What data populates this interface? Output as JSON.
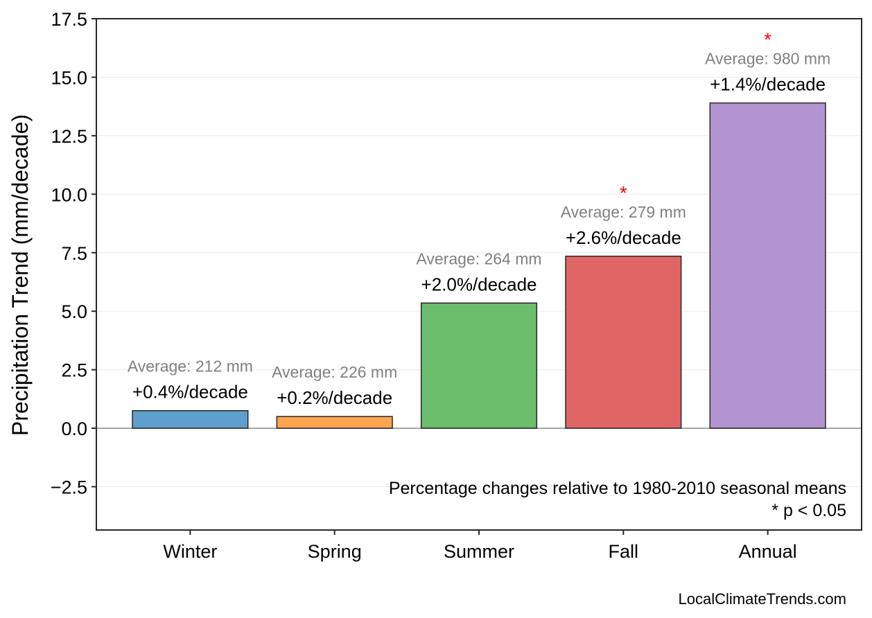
{
  "chart_data": {
    "type": "bar",
    "categories": [
      "Winter",
      "Spring",
      "Summer",
      "Fall",
      "Annual"
    ],
    "values": [
      0.75,
      0.5,
      5.35,
      7.35,
      13.9
    ],
    "averages": [
      "Average: 212 mm",
      "Average: 226 mm",
      "Average: 264 mm",
      "Average: 279 mm",
      "Average: 980 mm"
    ],
    "percent_changes": [
      "+0.4%/decade",
      "+0.2%/decade",
      "+2.0%/decade",
      "+2.6%/decade",
      "+1.4%/decade"
    ],
    "significant": [
      false,
      false,
      false,
      true,
      true
    ],
    "significance_marker": "*",
    "colors": [
      "#5f9fcc",
      "#ffa54f",
      "#6bbe6b",
      "#e06666",
      "#b294d0"
    ],
    "edge_color": "#262626",
    "star_color": "#ff0000",
    "ylabel": "Precipitation Trend (mm/decade)",
    "xlabel": "",
    "title": "",
    "ylim": [
      -4.35,
      17.5
    ],
    "yticks": [
      -2.5,
      0.0,
      2.5,
      5.0,
      7.5,
      10.0,
      12.5,
      15.0,
      17.5
    ],
    "ytick_labels": [
      "−2.5",
      "0.0",
      "2.5",
      "5.0",
      "7.5",
      "10.0",
      "12.5",
      "15.0",
      "17.5"
    ],
    "grid": true,
    "zero_line": true,
    "notes": [
      "Percentage changes relative to 1980-2010 seasonal means",
      "* p < 0.05"
    ]
  },
  "footer": {
    "source": "LocalClimateTrends.com"
  }
}
